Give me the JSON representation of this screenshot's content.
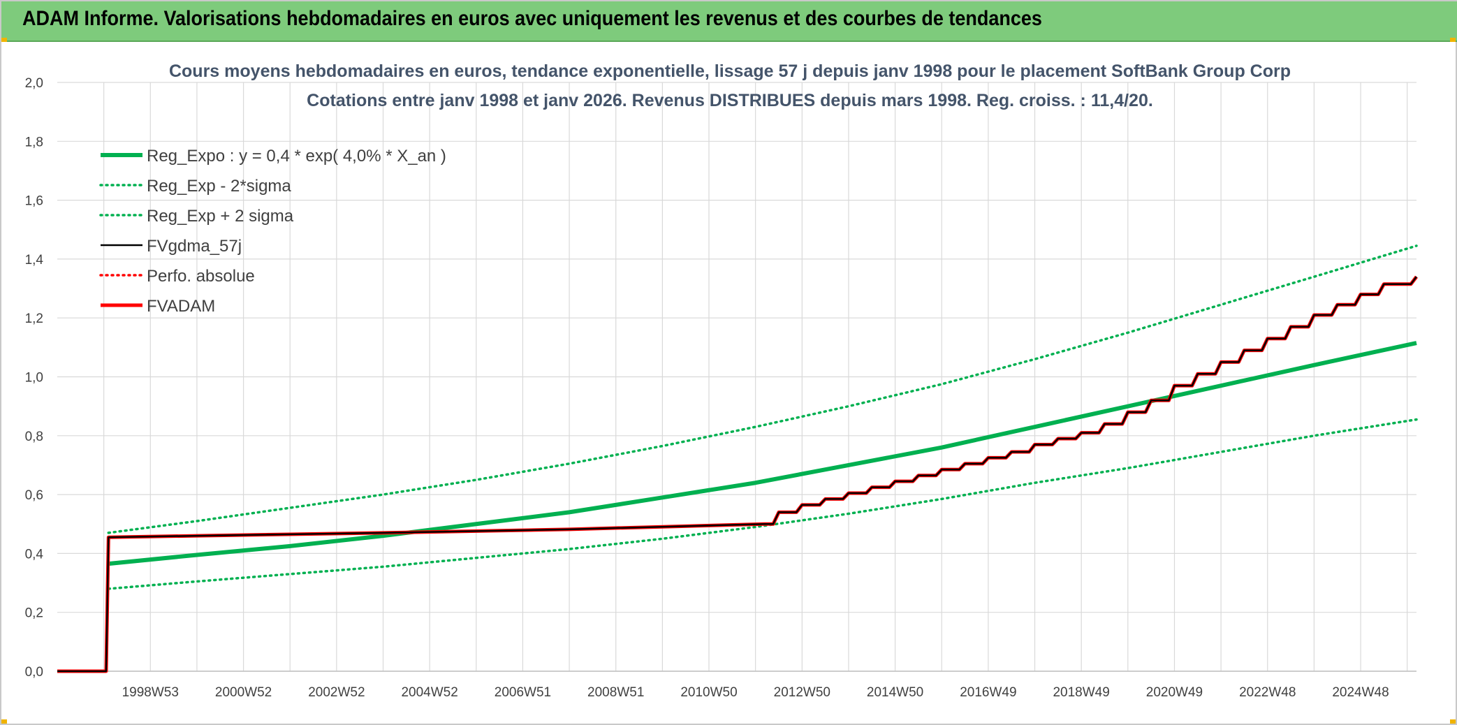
{
  "banner": {
    "title": "ADAM Informe. Valorisations hebdomadaires en euros avec uniquement les revenus et des courbes de tendances"
  },
  "colors": {
    "banner_bg": "#7ecb7c",
    "trend_green": "#00b050",
    "fvadam_red": "#ff0000",
    "gdma_black": "#000000",
    "grid": "#d9d9d9",
    "title_text": "#44546a"
  },
  "chart_data": {
    "type": "line",
    "title": "Cours moyens hebdomadaires en euros, tendance exponentielle, lissage 57 j depuis janv 1998 pour le placement SoftBank Group Corp",
    "subtitle": "Cotations entre janv 1998 et janv 2026. Revenus DISTRIBUES depuis mars 1998. Reg. croiss. : 11,4/20.",
    "xlabel": "",
    "ylabel": "",
    "xlim": [
      1997.0,
      2026.2
    ],
    "ylim": [
      0,
      2.0
    ],
    "y_ticks": [
      "0,0",
      "0,2",
      "0,4",
      "0,6",
      "0,8",
      "1,0",
      "1,2",
      "1,4",
      "1,6",
      "1,8",
      "2,0"
    ],
    "x_ticks": [
      {
        "label": "1998W53",
        "x": 1999.0
      },
      {
        "label": "2000W52",
        "x": 2001.0
      },
      {
        "label": "2002W52",
        "x": 2003.0
      },
      {
        "label": "2004W52",
        "x": 2005.0
      },
      {
        "label": "2006W51",
        "x": 2007.0
      },
      {
        "label": "2008W51",
        "x": 2009.0
      },
      {
        "label": "2010W50",
        "x": 2011.0
      },
      {
        "label": "2012W50",
        "x": 2013.0
      },
      {
        "label": "2014W50",
        "x": 2015.0
      },
      {
        "label": "2016W49",
        "x": 2017.0
      },
      {
        "label": "2018W49",
        "x": 2019.0
      },
      {
        "label": "2020W49",
        "x": 2021.0
      },
      {
        "label": "2022W48",
        "x": 2023.0
      },
      {
        "label": "2024W48",
        "x": 2025.0
      }
    ],
    "grid": true,
    "legend_position": "top-left",
    "series": [
      {
        "name": "Reg_Expo : y = 0,4 * exp( 4,0% *  X_an )",
        "style": "solid-thick",
        "color": "#00b050",
        "x": [
          1998.1,
          2000,
          2002,
          2004,
          2006,
          2008,
          2010,
          2012,
          2014,
          2016,
          2018,
          2020,
          2022,
          2024,
          2026.2
        ],
        "values": [
          0.365,
          0.395,
          0.425,
          0.46,
          0.5,
          0.54,
          0.59,
          0.64,
          0.7,
          0.76,
          0.83,
          0.9,
          0.97,
          1.04,
          1.115
        ]
      },
      {
        "name": "Reg_Exp - 2*sigma",
        "style": "dotted",
        "color": "#00b050",
        "x": [
          1998.1,
          2000,
          2002,
          2004,
          2006,
          2008,
          2010,
          2012,
          2014,
          2016,
          2018,
          2020,
          2022,
          2024,
          2026.2
        ],
        "values": [
          0.28,
          0.305,
          0.33,
          0.355,
          0.385,
          0.415,
          0.45,
          0.49,
          0.535,
          0.585,
          0.64,
          0.69,
          0.745,
          0.8,
          0.855
        ]
      },
      {
        "name": "Reg_Exp + 2 sigma",
        "style": "dotted",
        "color": "#00b050",
        "x": [
          1998.1,
          2000,
          2002,
          2004,
          2006,
          2008,
          2010,
          2012,
          2014,
          2016,
          2018,
          2020,
          2022,
          2024,
          2026.2
        ],
        "values": [
          0.47,
          0.51,
          0.555,
          0.6,
          0.65,
          0.705,
          0.765,
          0.83,
          0.9,
          0.975,
          1.06,
          1.15,
          1.245,
          1.34,
          1.445
        ]
      },
      {
        "name": "FVgdma_57j",
        "style": "solid",
        "color": "#000000",
        "x": [
          1997.0,
          1998.05,
          1998.1,
          2000,
          2004,
          2008,
          2012.2,
          2012.5,
          2013,
          2013.5,
          2014,
          2014.5,
          2015,
          2015.5,
          2016,
          2016.5,
          2017,
          2017.5,
          2018,
          2018.5,
          2019,
          2019.5,
          2020,
          2020.5,
          2021,
          2021.5,
          2022,
          2022.5,
          2023,
          2023.5,
          2024,
          2024.5,
          2025,
          2025.5,
          2026.2
        ],
        "values": [
          0.0,
          0.0,
          0.455,
          0.46,
          0.47,
          0.482,
          0.5,
          0.54,
          0.565,
          0.585,
          0.605,
          0.625,
          0.645,
          0.665,
          0.685,
          0.705,
          0.725,
          0.745,
          0.77,
          0.79,
          0.81,
          0.84,
          0.88,
          0.92,
          0.97,
          1.01,
          1.05,
          1.09,
          1.13,
          1.17,
          1.21,
          1.245,
          1.28,
          1.315,
          1.34
        ]
      },
      {
        "name": "Perfo. absolue",
        "style": "dotted",
        "color": "#ff0000",
        "x": [],
        "values": []
      },
      {
        "name": "FVADAM",
        "style": "solid-thick-step",
        "color": "#ff0000",
        "x": [
          1997.0,
          1998.05,
          1998.1,
          2000,
          2004,
          2008,
          2012.2,
          2012.5,
          2013,
          2013.5,
          2014,
          2014.5,
          2015,
          2015.5,
          2016,
          2016.5,
          2017,
          2017.5,
          2018,
          2018.5,
          2019,
          2019.5,
          2020,
          2020.5,
          2021,
          2021.5,
          2022,
          2022.5,
          2023,
          2023.5,
          2024,
          2024.5,
          2025,
          2025.5,
          2026.2
        ],
        "values": [
          0.0,
          0.0,
          0.455,
          0.46,
          0.47,
          0.482,
          0.5,
          0.54,
          0.565,
          0.585,
          0.605,
          0.625,
          0.645,
          0.665,
          0.685,
          0.705,
          0.725,
          0.745,
          0.77,
          0.79,
          0.81,
          0.84,
          0.88,
          0.92,
          0.97,
          1.01,
          1.05,
          1.09,
          1.13,
          1.17,
          1.21,
          1.245,
          1.28,
          1.315,
          1.34
        ]
      }
    ]
  }
}
